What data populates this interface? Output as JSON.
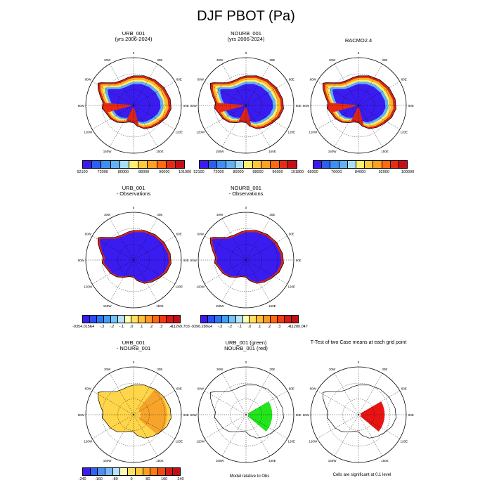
{
  "title": "DJF PBOT (Pa)",
  "lon_labels": [
    "0",
    "30E",
    "60E",
    "90E",
    "120E",
    "150E",
    "180",
    "150W",
    "120W",
    "90W",
    "60W",
    "30W"
  ],
  "row1": {
    "p1": {
      "title1": "URB_001",
      "title2": "(yrs 2006-2024)"
    },
    "p2": {
      "title1": "NOURB_001",
      "title2": "(yrs 2006-2024)"
    },
    "p3": {
      "title1": "RACMO2.4",
      "title2": ""
    }
  },
  "row2": {
    "p1": {
      "title1": "URB_001",
      "title2": "- Observations"
    },
    "p2": {
      "title1": "NOURB_001",
      "title2": "- Observations"
    }
  },
  "row3": {
    "p1": {
      "title1": "URB_001",
      "title2": "- NOURB_001"
    },
    "p2": {
      "title1": "URB_001 (green)",
      "title2": "NOURB_001 (red)"
    },
    "p3": {
      "title1": "T-Test of two Case means at each grid point",
      "title2": ""
    }
  },
  "colorbars": {
    "cb1": {
      "colors": [
        "#3a1cf0",
        "#2a5ef5",
        "#3c8ff5",
        "#5fb2f5",
        "#a7ddf7",
        "#ffee70",
        "#ffc93a",
        "#ffa020",
        "#ff6a10",
        "#e82a12",
        "#c80f17"
      ],
      "labels": [
        "52100",
        "72000",
        "80000",
        "88000",
        "96000",
        "101900"
      ]
    },
    "cb2": {
      "colors": [
        "#3a1cf0",
        "#2a5ef5",
        "#3c8ff5",
        "#5fb2f5",
        "#a7ddf7",
        "#ffee70",
        "#ffc93a",
        "#ffa020",
        "#ff6a10",
        "#e82a12",
        "#c80f17"
      ],
      "labels": [
        "52100",
        "72000",
        "80000",
        "88000",
        "96000",
        "101800"
      ]
    },
    "cb3": {
      "colors": [
        "#3a1cf0",
        "#2a5ef5",
        "#3c8ff5",
        "#5fb2f5",
        "#a7ddf7",
        "#ffee70",
        "#ffc93a",
        "#ffa020",
        "#ff6a10",
        "#e82a12",
        "#c80f17"
      ],
      "labels": [
        "68000",
        "76000",
        "84000",
        "92000",
        "100000"
      ]
    },
    "cb4": {
      "colors": [
        "#3a1cf0",
        "#2a4ef5",
        "#2a78f5",
        "#3ca0f5",
        "#72c4f7",
        "#b7e4f9",
        "#ffffb0",
        "#ffe060",
        "#ffbf3a",
        "#ff9a20",
        "#ff6a10",
        "#f03c12",
        "#d61a12",
        "#c01015"
      ],
      "labels": [
        "-9354.0156",
        "-.4",
        "-.3",
        "-.2",
        "-.1",
        ".0",
        ".1",
        ".2",
        ".3",
        ".4",
        "11269.703"
      ]
    },
    "cb5": {
      "colors": [
        "#3a1cf0",
        "#2a4ef5",
        "#2a78f5",
        "#3ca0f5",
        "#72c4f7",
        "#b7e4f9",
        "#ffffb0",
        "#ffe060",
        "#ffbf3a",
        "#ff9a20",
        "#ff6a10",
        "#f03c12",
        "#d61a12",
        "#c01015"
      ],
      "labels": [
        "-9396.2891",
        "-.4",
        "-.3",
        "-.2",
        "-.1",
        ".0",
        ".1",
        ".2",
        ".3",
        ".4",
        "11280.047"
      ]
    },
    "cb6": {
      "colors": [
        "#3a1cf0",
        "#3260f5",
        "#4a90f5",
        "#7ab8f7",
        "#b7e4f9",
        "#fff7b0",
        "#ffe060",
        "#ffc63a",
        "#ffa020",
        "#ff7a10",
        "#f04a12",
        "#d61a12",
        "#c01015"
      ],
      "labels": [
        "-240",
        "-160",
        "-80",
        "0",
        "80",
        "160",
        "240"
      ]
    }
  },
  "notes": {
    "model_rel": "Model relative to Obs",
    "significant": "Cells are significant at 0.1 level"
  },
  "colors": {
    "ice_interior": "#3a1cf0",
    "coast_red": "#d8241a",
    "diff_yellow": "#ffd54a",
    "diff_orange": "#f7a42a",
    "sig_green": "#22e51c",
    "sig_red": "#e81414"
  }
}
